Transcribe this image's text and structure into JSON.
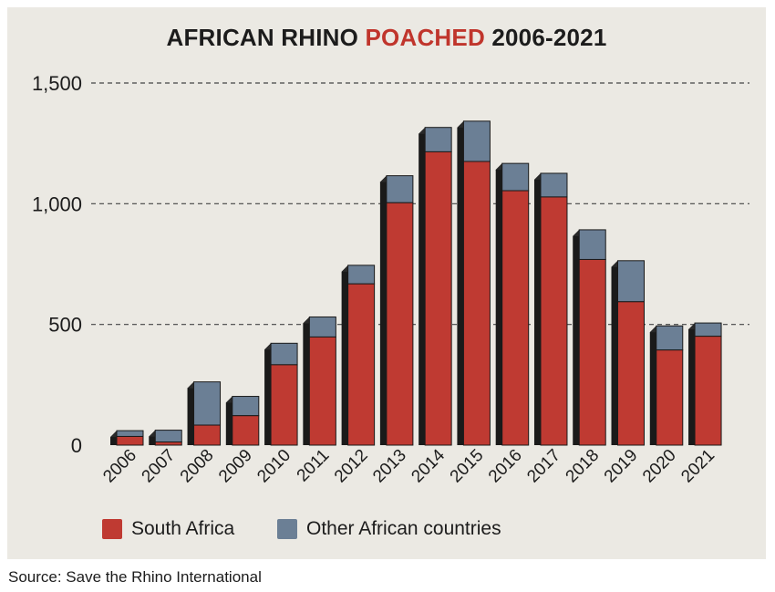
{
  "chart_data": {
    "type": "bar",
    "stacked": true,
    "title": "AFRICAN RHINO POACHED 2006-2021",
    "title_parts": {
      "before": "AFRICAN RHINO ",
      "highlight": "POACHED",
      "after": " 2006-2021"
    },
    "categories": [
      "2006",
      "2007",
      "2008",
      "2009",
      "2010",
      "2011",
      "2012",
      "2013",
      "2014",
      "2015",
      "2016",
      "2017",
      "2018",
      "2019",
      "2020",
      "2021"
    ],
    "series": [
      {
        "name": "South Africa",
        "color": "#bf3a32",
        "values": [
          36,
          13,
          83,
          122,
          333,
          448,
          668,
          1004,
          1215,
          1175,
          1054,
          1028,
          769,
          594,
          394,
          451
        ]
      },
      {
        "name": "Other African countries",
        "color": "#6b7f95",
        "values": [
          24,
          49,
          179,
          80,
          89,
          83,
          77,
          112,
          101,
          167,
          113,
          98,
          123,
          170,
          100,
          55
        ]
      }
    ],
    "yticks": [
      0,
      500,
      1000,
      1500
    ],
    "ytick_labels": [
      "0",
      "500",
      "1,000",
      "1,500"
    ],
    "ylim": [
      0,
      1500
    ],
    "grid": "horizontal dashed",
    "legend_position": "bottom-left",
    "xlabel": "",
    "ylabel": ""
  },
  "colors": {
    "highlight": "#c0352c",
    "panel_background": "#ebe9e3",
    "bar_side": "#1a1a1a"
  },
  "source_text": "Source: Save the Rhino International"
}
